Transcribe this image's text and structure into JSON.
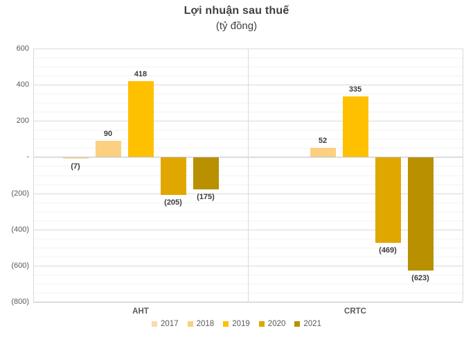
{
  "title": "Lợi nhuận sau thuế",
  "subtitle": "(tỷ đồng)",
  "colors": {
    "title_text": "#404040",
    "axis_text": "#595959",
    "data_label_text": "#3a3a3a",
    "grid_minor": "#f2f2f2",
    "grid_major": "#d9d9d9",
    "zero_line": "#bfbfbf"
  },
  "chart_data": {
    "type": "bar",
    "title": "Lợi nhuận sau thuế",
    "subtitle": "(tỷ đồng)",
    "categories": [
      "AHT",
      "CRTC"
    ],
    "series": [
      {
        "name": "2017",
        "color": "#F5DEAE",
        "values": [
          -7,
          null
        ],
        "labels": [
          "(7)",
          ""
        ]
      },
      {
        "name": "2018",
        "color": "#FBD080",
        "values": [
          90,
          52
        ],
        "labels": [
          "90",
          "52"
        ]
      },
      {
        "name": "2019",
        "color": "#FFC000",
        "values": [
          418,
          335
        ],
        "labels": [
          "418",
          "335"
        ]
      },
      {
        "name": "2020",
        "color": "#DFA700",
        "values": [
          -205,
          -469
        ],
        "labels": [
          "(205)",
          "(469)"
        ]
      },
      {
        "name": "2021",
        "color": "#B89000",
        "values": [
          -175,
          -623
        ],
        "labels": [
          "(175)",
          "(623)"
        ]
      }
    ],
    "y_axis": {
      "min": -800,
      "max": 600,
      "major_unit": 200,
      "minor_unit": 50,
      "ticks": [
        {
          "value": 600,
          "label": "600"
        },
        {
          "value": 400,
          "label": "400"
        },
        {
          "value": 200,
          "label": "200"
        },
        {
          "value": 0,
          "label": "-"
        },
        {
          "value": -200,
          "label": "(200)"
        },
        {
          "value": -400,
          "label": "(400)"
        },
        {
          "value": -600,
          "label": "(600)"
        },
        {
          "value": -800,
          "label": "(800)"
        }
      ]
    },
    "legend_position": "bottom",
    "grid": true
  }
}
